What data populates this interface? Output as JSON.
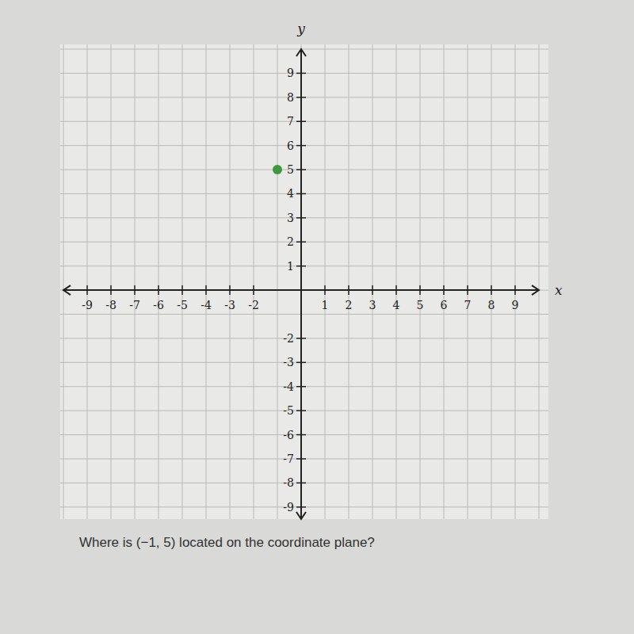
{
  "chart_data": {
    "type": "scatter",
    "annotations": [
      "Where is (−1, 5) located on the coordinate plane?"
    ],
    "x_label": "x",
    "y_label": "y",
    "x": [
      -1
    ],
    "values": [
      5
    ],
    "color": "#3c9a3c",
    "marker": "circle",
    "xlim": [
      -10,
      10
    ],
    "ylim": [
      -9.5,
      10
    ],
    "xticks": [
      -9,
      -8,
      -7,
      -6,
      -5,
      -4,
      -3,
      -2,
      1,
      2,
      3,
      4,
      5,
      6,
      7,
      8,
      9
    ],
    "yticks": [
      -9,
      -8,
      -7,
      -6,
      -5,
      -4,
      -3,
      -2,
      1,
      2,
      3,
      4,
      5,
      6,
      7,
      8,
      9
    ],
    "grid": true
  }
}
